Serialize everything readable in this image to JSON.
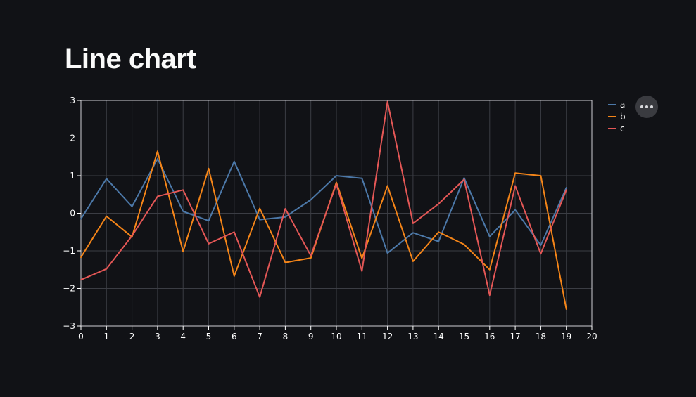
{
  "page": {
    "title": "Line chart"
  },
  "menu": {
    "icon": "more-horizontal-icon"
  },
  "colors": {
    "background": "#111216",
    "grid": "#3b3d44",
    "axis": "#ffffff",
    "text": "#ffffff",
    "a": "#4c78a8",
    "b": "#f58518",
    "c": "#e45756"
  },
  "chart_data": {
    "type": "line",
    "title": "",
    "xlabel": "",
    "ylabel": "",
    "xlim": [
      0,
      20
    ],
    "ylim": [
      -3,
      3
    ],
    "xticks": [
      0,
      1,
      2,
      3,
      4,
      5,
      6,
      7,
      8,
      9,
      10,
      11,
      12,
      13,
      14,
      15,
      16,
      17,
      18,
      19,
      20
    ],
    "yticks": [
      3,
      2,
      1,
      0,
      -1,
      -2,
      -3
    ],
    "ytick_labels": [
      "3",
      "2",
      "1",
      "0",
      "−1",
      "−2",
      "−3"
    ],
    "grid": true,
    "legend_position": "top-right",
    "x": [
      0,
      1,
      2,
      3,
      4,
      5,
      6,
      7,
      8,
      9,
      10,
      11,
      12,
      13,
      14,
      15,
      16,
      17,
      18,
      19
    ],
    "series": [
      {
        "name": "a",
        "color": "#4c78a8",
        "values": [
          -0.15,
          0.92,
          0.18,
          1.45,
          0.05,
          -0.2,
          1.38,
          -0.17,
          -0.1,
          0.36,
          1.0,
          0.93,
          -1.06,
          -0.52,
          -0.75,
          0.94,
          -0.62,
          0.09,
          -0.85,
          0.68
        ]
      },
      {
        "name": "b",
        "color": "#f58518",
        "values": [
          -1.17,
          -0.08,
          -0.63,
          1.65,
          -1.02,
          1.19,
          -1.67,
          0.13,
          -1.31,
          -1.19,
          0.82,
          -1.2,
          0.73,
          -1.28,
          -0.5,
          -0.83,
          -1.5,
          1.07,
          1.0,
          -2.55
        ]
      },
      {
        "name": "c",
        "color": "#e45756",
        "values": [
          -1.77,
          -1.48,
          -0.6,
          0.45,
          0.62,
          -0.81,
          -0.5,
          -2.23,
          0.12,
          -1.13,
          0.78,
          -1.54,
          2.97,
          -0.27,
          0.25,
          0.9,
          -2.18,
          0.73,
          -1.08,
          0.62
        ]
      }
    ]
  }
}
